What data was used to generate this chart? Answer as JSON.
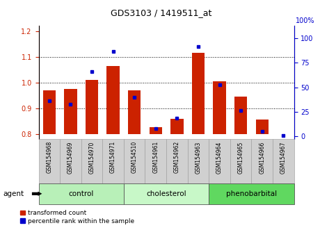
{
  "title": "GDS3103 / 1419511_at",
  "samples": [
    "GSM154968",
    "GSM154969",
    "GSM154970",
    "GSM154971",
    "GSM154510",
    "GSM154961",
    "GSM154962",
    "GSM154963",
    "GSM154964",
    "GSM154965",
    "GSM154966",
    "GSM154967"
  ],
  "red_values": [
    0.97,
    0.975,
    1.01,
    1.065,
    0.968,
    0.825,
    0.858,
    1.115,
    1.005,
    0.945,
    0.855,
    0.8
  ],
  "blue_values": [
    0.945,
    0.93,
    1.065,
    1.145,
    0.96,
    0.832,
    0.875,
    1.165,
    1.01,
    0.905,
    0.82,
    0.805
  ],
  "groups": [
    {
      "label": "control",
      "start": 0,
      "end": 4,
      "color": "#b8f0b8"
    },
    {
      "label": "cholesterol",
      "start": 4,
      "end": 8,
      "color": "#c8f8c8"
    },
    {
      "label": "phenobarbital",
      "start": 8,
      "end": 12,
      "color": "#60d860"
    }
  ],
  "ylim_left": [
    0.78,
    1.22
  ],
  "ylim_right": [
    -2.5,
    112.5
  ],
  "yticks_left": [
    0.8,
    0.9,
    1.0,
    1.1,
    1.2
  ],
  "yticks_right": [
    0,
    25,
    50,
    75,
    100
  ],
  "left_tick_color": "#cc2200",
  "right_tick_color": "#0000cc",
  "bar_color": "#cc2200",
  "dot_color": "#0000cc",
  "bg_color": "#ffffff",
  "tick_bg": "#d0d0d0",
  "grid_yticks": [
    0.9,
    1.0,
    1.1
  ]
}
